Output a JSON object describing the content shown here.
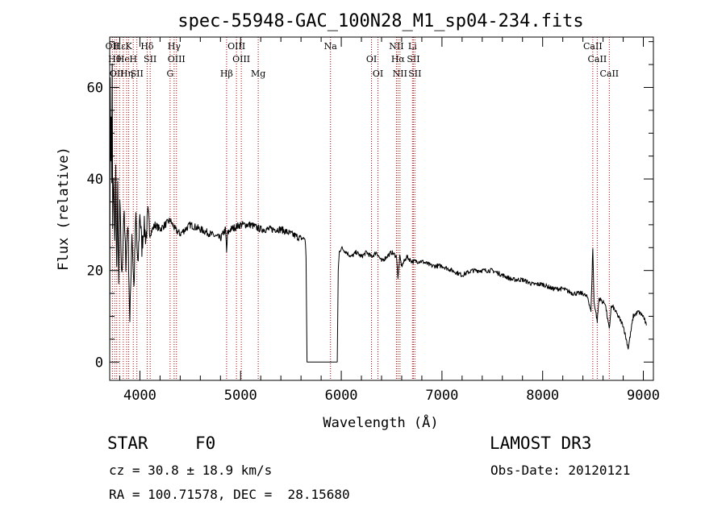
{
  "chart_data": {
    "type": "line",
    "title": "spec-55948-GAC_100N28_M1_sp04-234.fits",
    "xlabel": "Wavelength (Å)",
    "ylabel": "Flux (relative)",
    "xlim": [
      3700,
      9100
    ],
    "ylim": [
      -4,
      71
    ],
    "x_ticks": [
      "4000",
      "5000",
      "6000",
      "7000",
      "8000",
      "9000"
    ],
    "x_tick_values": [
      4000,
      5000,
      6000,
      7000,
      8000,
      9000
    ],
    "y_ticks": [
      "0",
      "20",
      "40",
      "60"
    ],
    "y_tick_values": [
      0,
      20,
      40,
      60
    ],
    "series": [
      {
        "name": "flux",
        "x": [
          3700,
          3705,
          3710,
          3715,
          3720,
          3725,
          3730,
          3740,
          3750,
          3760,
          3770,
          3780,
          3790,
          3800,
          3820,
          3840,
          3860,
          3880,
          3900,
          3920,
          3940,
          3960,
          3980,
          4000,
          4020,
          4040,
          4060,
          4080,
          4100,
          4150,
          4200,
          4250,
          4300,
          4350,
          4400,
          4500,
          4600,
          4700,
          4800,
          4850,
          4861,
          4870,
          4900,
          5000,
          5100,
          5200,
          5300,
          5400,
          5500,
          5600,
          5640,
          5650,
          5660,
          5670,
          5680,
          5700,
          5800,
          5900,
          5930,
          5950,
          5960,
          5970,
          5980,
          6000,
          6050,
          6100,
          6150,
          6200,
          6250,
          6300,
          6350,
          6400,
          6450,
          6500,
          6550,
          6563,
          6580,
          6600,
          6650,
          6700,
          6800,
          6900,
          7000,
          7100,
          7200,
          7300,
          7400,
          7500,
          7600,
          7700,
          7800,
          7900,
          8000,
          8100,
          8200,
          8300,
          8400,
          8450,
          8480,
          8498,
          8510,
          8520,
          8542,
          8560,
          8600,
          8620,
          8662,
          8680,
          8700,
          8750,
          8800,
          8850,
          8900,
          8950,
          9000,
          9030
        ],
        "y": [
          0,
          60,
          45,
          55,
          38,
          65,
          30,
          40,
          25,
          42,
          20,
          38,
          15,
          35,
          18,
          33,
          22,
          31,
          8,
          29,
          16,
          32,
          20,
          33,
          25,
          30,
          27,
          32,
          28,
          30,
          29,
          30,
          31,
          29,
          28,
          30,
          29,
          28,
          27,
          29,
          24,
          28,
          29,
          30,
          30,
          29,
          29,
          29,
          28,
          27,
          27,
          23,
          0,
          0,
          0,
          0,
          0,
          0,
          0,
          0,
          0,
          20,
          24,
          25,
          24,
          23,
          24,
          23,
          24,
          23,
          24,
          22,
          23,
          24,
          23,
          18,
          23,
          21,
          23,
          22,
          22,
          21,
          21,
          20,
          19,
          20,
          20,
          20,
          19,
          18,
          18,
          17,
          17,
          16,
          16,
          15,
          15,
          14,
          11,
          25,
          13,
          12,
          9,
          14,
          13,
          13,
          7,
          12,
          12,
          10,
          8,
          3,
          10,
          11,
          10,
          8
        ]
      }
    ],
    "lines": [
      {
        "x": 3727,
        "label": "OII"
      },
      {
        "x": 3750,
        "label": "Hθ"
      },
      {
        "x": 3770,
        "label": "OII"
      },
      {
        "x": 3798,
        "label": "Hε"
      },
      {
        "x": 3835,
        "label": "He"
      },
      {
        "x": 3868,
        "label": "Hη"
      },
      {
        "x": 3889,
        "label": "K"
      },
      {
        "x": 3934,
        "label": "H"
      },
      {
        "x": 3970,
        "label": "SII"
      },
      {
        "x": 4072,
        "label": "Hδ"
      },
      {
        "x": 4102,
        "label": "SII"
      },
      {
        "x": 4300,
        "label": "G"
      },
      {
        "x": 4340,
        "label": "Hγ"
      },
      {
        "x": 4363,
        "label": "OIII"
      },
      {
        "x": 4861,
        "label": "Hβ"
      },
      {
        "x": 4959,
        "label": "OIII"
      },
      {
        "x": 5007,
        "label": "OIII"
      },
      {
        "x": 5175,
        "label": "Mg"
      },
      {
        "x": 5893,
        "label": "Na"
      },
      {
        "x": 6300,
        "label": "OI"
      },
      {
        "x": 6364,
        "label": "OI"
      },
      {
        "x": 6548,
        "label": "NII"
      },
      {
        "x": 6563,
        "label": "Hα"
      },
      {
        "x": 6583,
        "label": "NII"
      },
      {
        "x": 6707,
        "label": "Li"
      },
      {
        "x": 6716,
        "label": "SII"
      },
      {
        "x": 6731,
        "label": "SII"
      },
      {
        "x": 8498,
        "label": "CaII"
      },
      {
        "x": 8542,
        "label": "CaII"
      },
      {
        "x": 8662,
        "label": "CaII"
      }
    ],
    "grid": false
  },
  "footer": {
    "class_label": "STAR",
    "subclass": "F0",
    "survey": "LAMOST DR3",
    "cz": "cz = 30.8 ± 18.9 km/s",
    "obs_date": "Obs-Date: 20120121",
    "coords": "RA = 100.71578, DEC =  28.15680"
  },
  "colors": {
    "line": "#000000",
    "marker_line": "#aa0000"
  }
}
